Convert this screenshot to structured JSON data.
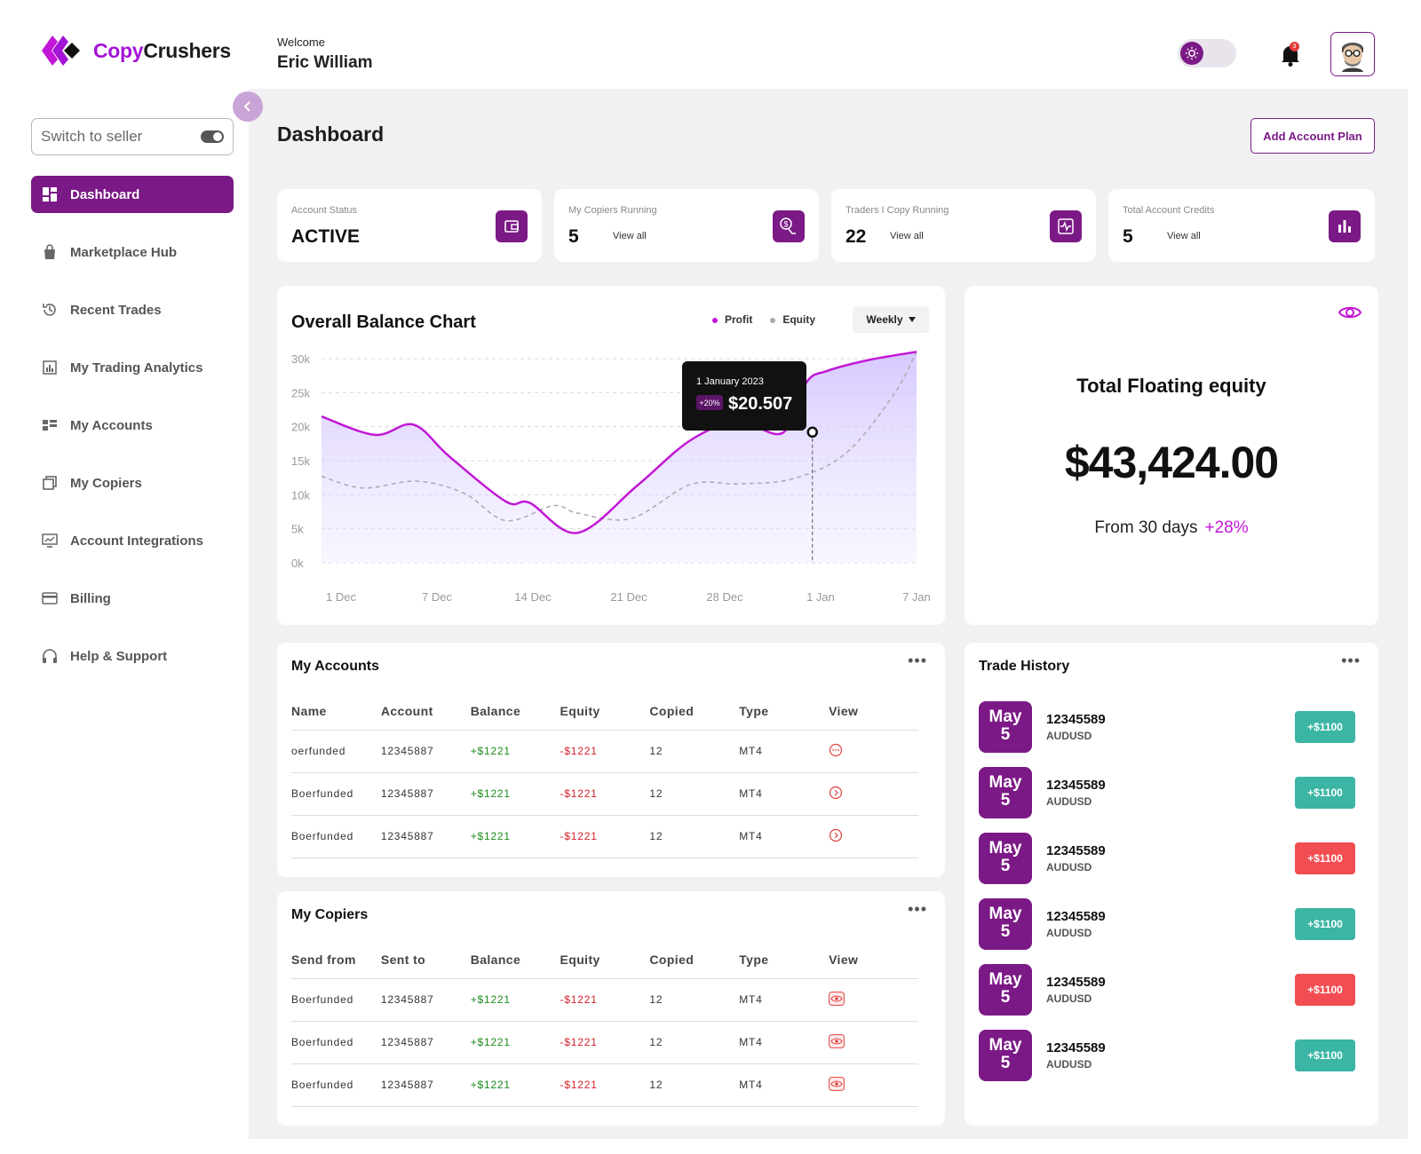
{
  "brand": {
    "name_part1": "Copy",
    "name_part2": "Crushers",
    "color": "#a414d6"
  },
  "header": {
    "welcome": "Welcome",
    "user_name": "Eric William",
    "notification_count": "3"
  },
  "sidebar": {
    "switch_label": "Switch to seller",
    "items": [
      {
        "label": "Dashboard",
        "icon": "dashboard-icon",
        "active": true
      },
      {
        "label": "Marketplace Hub",
        "icon": "bag-icon"
      },
      {
        "label": "Recent Trades",
        "icon": "history-icon"
      },
      {
        "label": "My Trading Analytics",
        "icon": "analytics-icon"
      },
      {
        "label": "My Accounts",
        "icon": "accounts-icon"
      },
      {
        "label": "My Copiers",
        "icon": "copy-icon"
      },
      {
        "label": "Account Integrations",
        "icon": "monitor-icon"
      },
      {
        "label": "Billing",
        "icon": "card-icon"
      },
      {
        "label": "Help & Support",
        "icon": "headset-icon"
      }
    ]
  },
  "page": {
    "title": "Dashboard",
    "add_button": "Add Account Plan"
  },
  "stats": [
    {
      "label": "Account Status",
      "value": "ACTIVE",
      "link": "",
      "icon": "wallet-icon"
    },
    {
      "label": "My Copiers Running",
      "value": "5",
      "link": "View all",
      "icon": "money-hand-icon"
    },
    {
      "label": "Traders I Copy Running",
      "value": "22",
      "link": "View all",
      "icon": "activity-icon"
    },
    {
      "label": "Total Account Credits",
      "value": "5",
      "link": "View all",
      "icon": "bar-chart-icon"
    }
  ],
  "balance_chart": {
    "title": "Overall Balance Chart",
    "legend": [
      "Profit",
      "Equity"
    ],
    "period": "Weekly",
    "tooltip": {
      "date": "1 January 2023",
      "change": "+20%",
      "value": "$20.507"
    }
  },
  "chart_data": {
    "type": "line",
    "title": "Overall Balance Chart",
    "x_labels": [
      "1 Dec",
      "7 Dec",
      "14 Dec",
      "21 Dec",
      "28 Dec",
      "1 Jan",
      "7 Jan"
    ],
    "y_ticks": [
      "30k",
      "25k",
      "20k",
      "15k",
      "10k",
      "5k",
      "0k"
    ],
    "ylim": [
      0,
      30000
    ],
    "grid": true,
    "legend_position": "top-right",
    "series": [
      {
        "name": "Profit",
        "color": "#c217d6",
        "x": [
          0,
          0.09,
          0.155,
          0.215,
          0.31,
          0.35,
          0.43,
          0.53,
          0.62,
          0.7,
          0.775,
          0.815,
          0.85,
          0.92,
          1.0
        ],
        "values": [
          21500,
          18800,
          20300,
          15600,
          9000,
          8800,
          4400,
          11300,
          18000,
          20800,
          19100,
          26500,
          28200,
          29800,
          31000
        ]
      },
      {
        "name": "Equity",
        "color": "#aaaaaa",
        "x": [
          0,
          0.07,
          0.16,
          0.24,
          0.31,
          0.39,
          0.43,
          0.52,
          0.62,
          0.7,
          0.79,
          0.88,
          0.96,
          1.0
        ],
        "values": [
          12700,
          11000,
          12000,
          10200,
          6200,
          8400,
          7300,
          6500,
          11500,
          11600,
          12300,
          16000,
          24500,
          31000
        ]
      }
    ]
  },
  "floating_equity": {
    "title": "Total Floating equity",
    "value": "$43,424.00",
    "from": "From 30 days",
    "change": "+28%"
  },
  "my_accounts": {
    "title": "My Accounts",
    "columns": [
      "Name",
      "Account",
      "Balance",
      "Equity",
      "Copied",
      "Type",
      "View"
    ],
    "rows": [
      [
        "oerfunded",
        "12345887",
        "+$1221",
        "-$1221",
        "12",
        "MT4"
      ],
      [
        "Boerfunded",
        "12345887",
        "+$1221",
        "-$1221",
        "12",
        "MT4"
      ],
      [
        "Boerfunded",
        "12345887",
        "+$1221",
        "-$1221",
        "12",
        "MT4"
      ]
    ]
  },
  "my_copiers": {
    "title": "My Copiers",
    "columns": [
      "Send from",
      "Sent to",
      "Balance",
      "Equity",
      "Copied",
      "Type",
      "View"
    ],
    "rows": [
      [
        "Boerfunded",
        "12345887",
        "+$1221",
        "-$1221",
        "12",
        "MT4"
      ],
      [
        "Boerfunded",
        "12345887",
        "+$1221",
        "-$1221",
        "12",
        "MT4"
      ],
      [
        "Boerfunded",
        "12345887",
        "+$1221",
        "-$1221",
        "12",
        "MT4"
      ]
    ]
  },
  "trade_history": {
    "title": "Trade History",
    "items": [
      {
        "month": "May",
        "day": "5",
        "id": "12345589",
        "pair": "AUDUSD",
        "amount": "+$1100",
        "direction": "up"
      },
      {
        "month": "May",
        "day": "5",
        "id": "12345589",
        "pair": "AUDUSD",
        "amount": "+$1100",
        "direction": "up"
      },
      {
        "month": "May",
        "day": "5",
        "id": "12345589",
        "pair": "AUDUSD",
        "amount": "+$1100",
        "direction": "down"
      },
      {
        "month": "May",
        "day": "5",
        "id": "12345589",
        "pair": "AUDUSD",
        "amount": "+$1100",
        "direction": "up"
      },
      {
        "month": "May",
        "day": "5",
        "id": "12345589",
        "pair": "AUDUSD",
        "amount": "+$1100",
        "direction": "down"
      },
      {
        "month": "May",
        "day": "5",
        "id": "12345589",
        "pair": "AUDUSD",
        "amount": "+$1100",
        "direction": "up"
      }
    ]
  },
  "colors": {
    "primary": "#7b1a86",
    "accent": "#c217d6",
    "positive": "#3bb5a4",
    "negative": "#f24d52"
  }
}
